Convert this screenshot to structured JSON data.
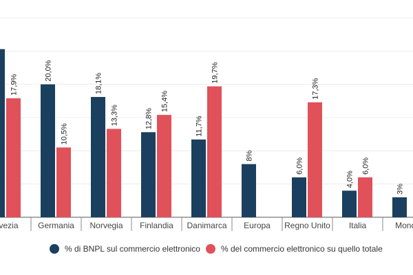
{
  "chart_data": {
    "type": "bar",
    "title": "",
    "xlabel": "",
    "ylabel": "",
    "ylim": [
      0,
      30
    ],
    "grid": true,
    "gridlines": [
      0,
      5,
      10,
      15,
      20,
      25,
      30
    ],
    "legend_position": "bottom",
    "categories": [
      "Svezia",
      "Germania",
      "Norvegia",
      "Finlandia",
      "Danimarca",
      "Europa",
      "Regno Unito",
      "Italia",
      "Mondo"
    ],
    "series": [
      {
        "name": "% di BNPL sul commercio elettronico",
        "color": "#1b3f5e",
        "values": [
          25.3,
          20.0,
          18.1,
          12.8,
          11.7,
          8,
          6.0,
          4.0,
          3
        ],
        "labels": [
          "",
          "20,0%",
          "18,1%",
          "12,8%",
          "11,7%",
          "8%",
          "6,0%",
          "4,0%",
          "3%"
        ]
      },
      {
        "name": "% del commercio elettronico su quello totale",
        "color": "#e0515a",
        "values": [
          17.9,
          10.5,
          13.3,
          15.4,
          19.7,
          null,
          17.3,
          6.0,
          null
        ],
        "labels": [
          "17,9%",
          "10,5%",
          "13,3%",
          "15,4%",
          "19,7%",
          "",
          "17,3%",
          "6,0%",
          ""
        ]
      }
    ]
  }
}
